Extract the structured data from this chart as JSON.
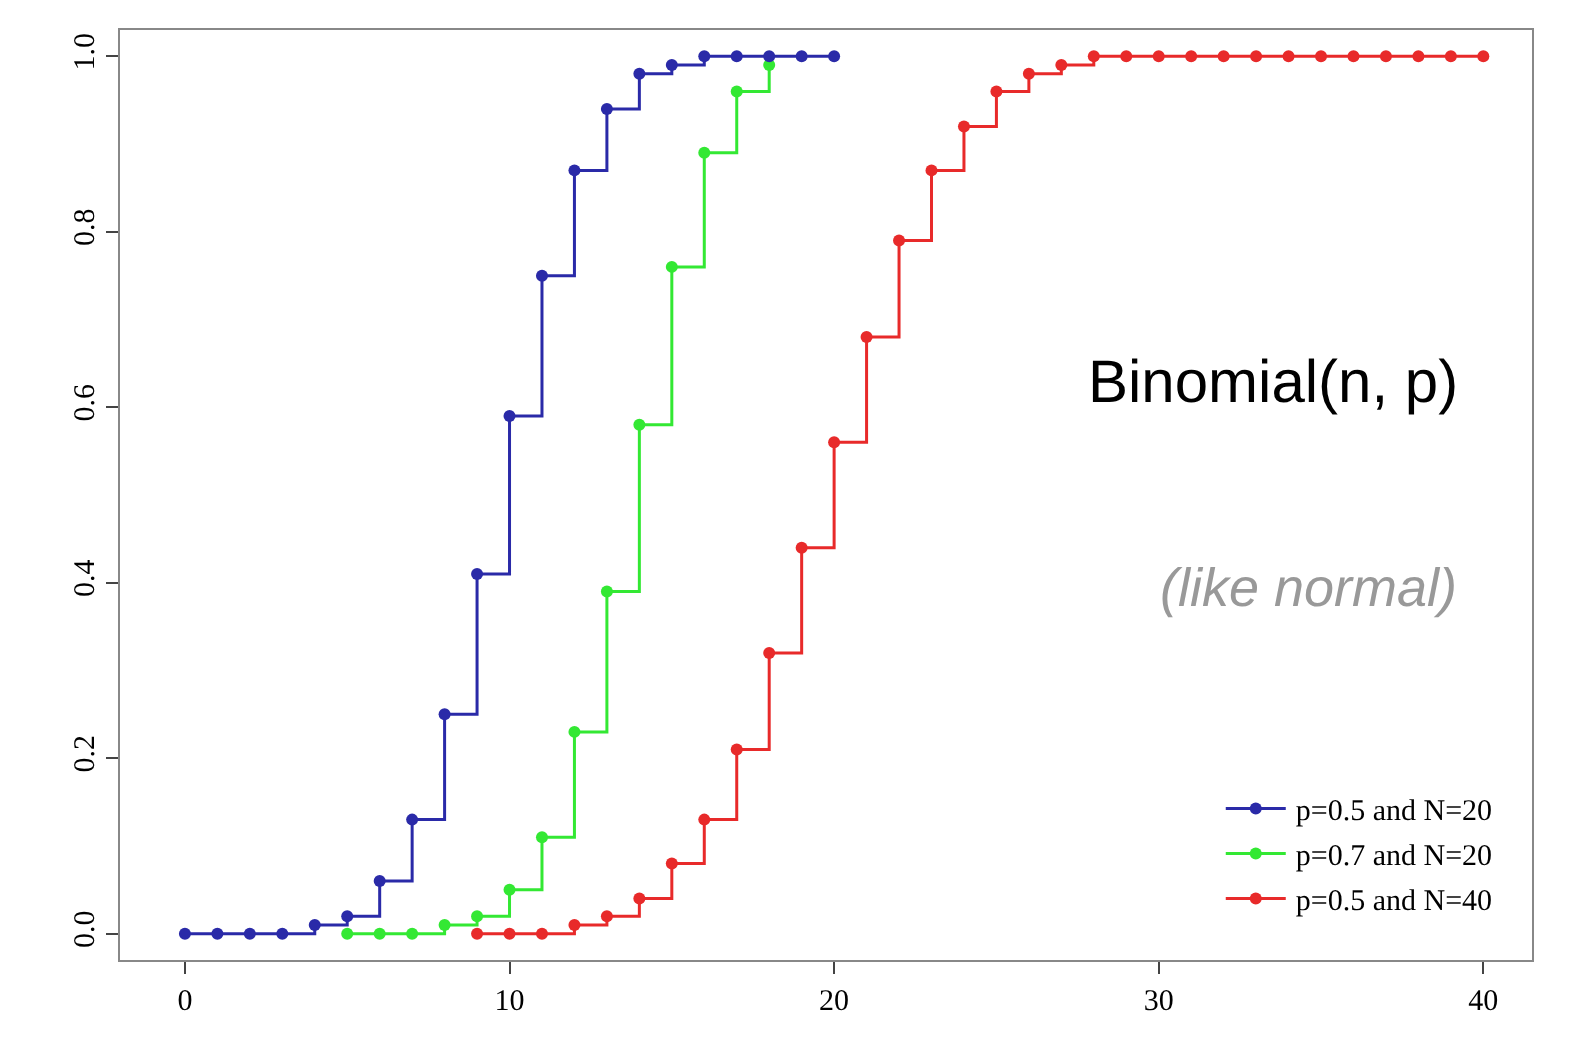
{
  "chart_data": {
    "type": "step",
    "series": [
      {
        "name": "p=0.5 and N=20",
        "color": "#2a2aa8",
        "x": [
          0,
          1,
          2,
          3,
          4,
          5,
          6,
          7,
          8,
          9,
          10,
          11,
          12,
          13,
          14,
          15,
          16,
          17,
          18,
          19,
          20
        ],
        "values": [
          0,
          0,
          0,
          0,
          0.01,
          0.02,
          0.06,
          0.13,
          0.25,
          0.41,
          0.59,
          0.75,
          0.87,
          0.94,
          0.98,
          0.99,
          1,
          1,
          1,
          1,
          1
        ]
      },
      {
        "name": "p=0.7 and N=20",
        "color": "#33e833",
        "x": [
          5,
          6,
          7,
          8,
          9,
          10,
          11,
          12,
          13,
          14,
          15,
          16,
          17,
          18
        ],
        "values": [
          0,
          0,
          0,
          0.01,
          0.02,
          0.05,
          0.11,
          0.23,
          0.39,
          0.58,
          0.76,
          0.89,
          0.96,
          0.99
        ]
      },
      {
        "name": "p=0.5 and N=40",
        "color": "#e82a2a",
        "x": [
          9,
          10,
          11,
          12,
          13,
          14,
          15,
          16,
          17,
          18,
          19,
          20,
          21,
          22,
          23,
          24,
          25,
          26,
          27,
          28,
          29,
          30,
          31,
          32,
          33,
          34,
          35,
          36,
          37,
          38,
          39,
          40
        ],
        "values": [
          0,
          0,
          0,
          0.01,
          0.02,
          0.04,
          0.08,
          0.13,
          0.21,
          0.32,
          0.44,
          0.56,
          0.68,
          0.79,
          0.87,
          0.92,
          0.96,
          0.98,
          0.99,
          1,
          1,
          1,
          1,
          1,
          1,
          1,
          1,
          1,
          1,
          1,
          1,
          1
        ]
      }
    ],
    "xlim": [
      -2,
      41.5
    ],
    "ylim": [
      -0.03,
      1.03
    ],
    "xticks": [
      0,
      10,
      20,
      30,
      40
    ],
    "yticks": [
      {
        "value": 0,
        "label": "0.0"
      },
      {
        "value": 0.2,
        "label": "0.2"
      },
      {
        "value": 0.4,
        "label": "0.4"
      },
      {
        "value": 0.6,
        "label": "0.6"
      },
      {
        "value": 0.8,
        "label": "0.8"
      },
      {
        "value": 1,
        "label": "1.0"
      }
    ],
    "annotations": [
      "Binomial(n, p)",
      "(like normal)"
    ],
    "legend": "bottom right",
    "marker": "circle",
    "line_style": "solid",
    "grid": false
  }
}
